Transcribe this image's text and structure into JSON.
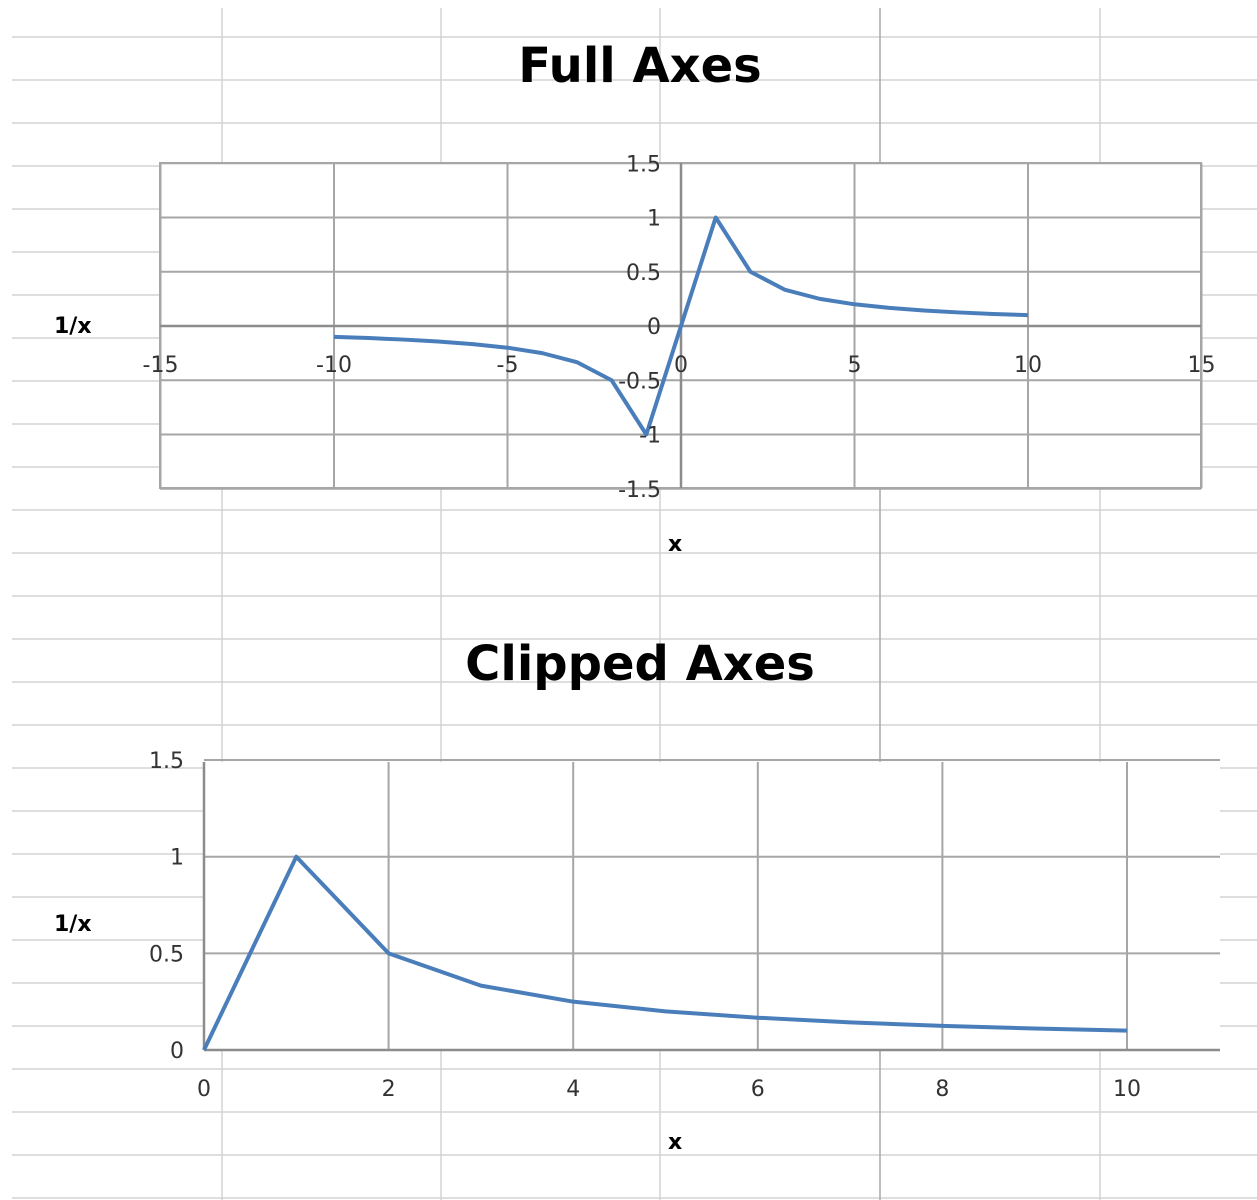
{
  "chart_data": [
    {
      "type": "line",
      "title": "Full Axes",
      "xlabel": "x",
      "ylabel": "1/x",
      "xlim": [
        -15,
        15
      ],
      "ylim": [
        -1.5,
        1.5
      ],
      "x_ticks": [
        -15,
        -10,
        -5,
        0,
        5,
        10,
        15
      ],
      "y_ticks": [
        -1.5,
        -1,
        -0.5,
        0,
        0.5,
        1,
        1.5
      ],
      "grid": true,
      "line_color": "#4a7ebb",
      "series": [
        {
          "x": [
            -10,
            -9,
            -8,
            -7,
            -6,
            -5,
            -4,
            -3,
            -2,
            -1,
            0,
            1,
            2,
            3,
            4,
            5,
            6,
            7,
            8,
            9,
            10
          ],
          "values": [
            -0.1,
            -0.111,
            -0.125,
            -0.143,
            -0.167,
            -0.2,
            -0.25,
            -0.333,
            -0.5,
            -1,
            0,
            1,
            0.5,
            0.333,
            0.25,
            0.2,
            0.167,
            0.143,
            0.125,
            0.111,
            0.1
          ]
        }
      ]
    },
    {
      "type": "line",
      "title": "Clipped Axes",
      "xlabel": "x",
      "ylabel": "1/x",
      "xlim": [
        0,
        11
      ],
      "ylim": [
        0,
        1.5
      ],
      "x_ticks": [
        0,
        2,
        4,
        6,
        8,
        10
      ],
      "y_ticks": [
        0,
        0.5,
        1,
        1.5
      ],
      "grid": true,
      "line_color": "#4a7ebb",
      "series": [
        {
          "x": [
            0,
            1,
            2,
            3,
            4,
            5,
            6,
            7,
            8,
            9,
            10
          ],
          "values": [
            0,
            1,
            0.5,
            0.333,
            0.25,
            0.2,
            0.167,
            0.143,
            0.125,
            0.111,
            0.1
          ]
        }
      ]
    }
  ]
}
